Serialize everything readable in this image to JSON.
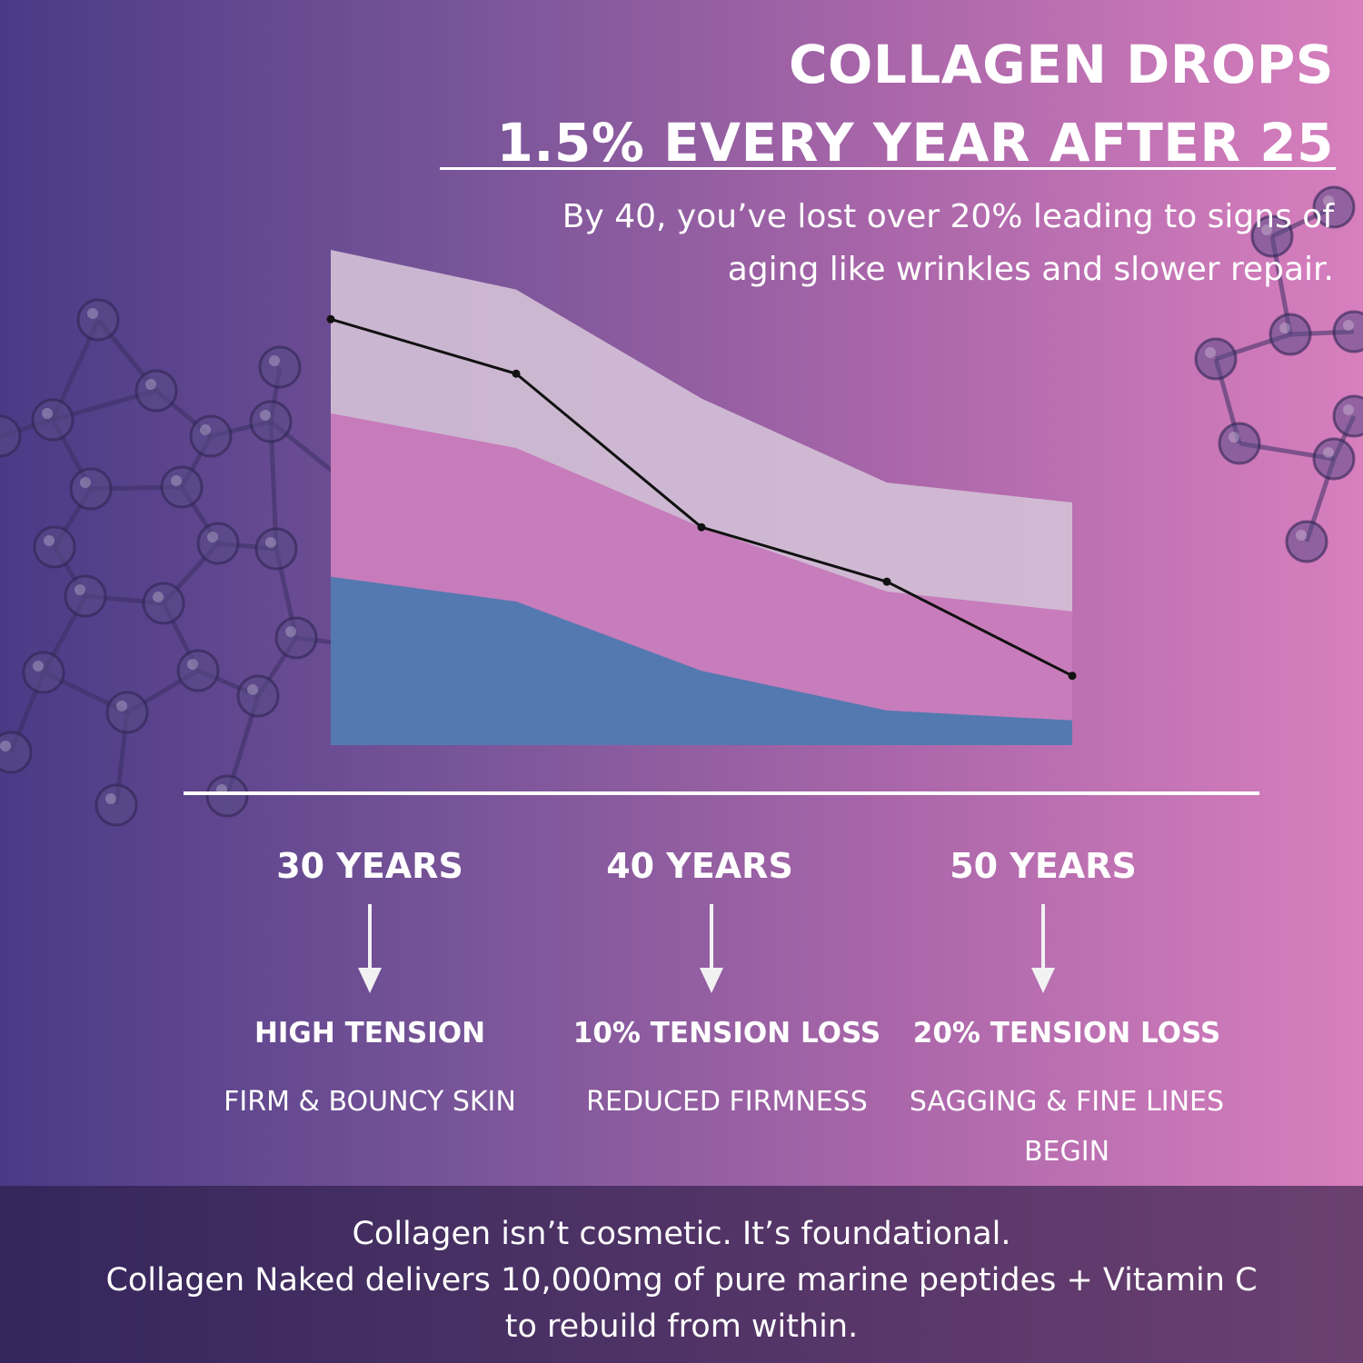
{
  "header": {
    "title_line1": "COLLAGEN DROPS",
    "title_line2": "1.5% EVERY YEAR AFTER 25",
    "subtitle_line1": "By 40, you’ve lost over 20% leading to signs of",
    "subtitle_line2": "aging like wrinkles and slower repair."
  },
  "chart_data": {
    "type": "area",
    "title": "",
    "xlabel": "",
    "ylabel": "",
    "grid": false,
    "legend": "none",
    "x": [
      0,
      1,
      2,
      3,
      4
    ],
    "ylim": [
      0,
      100
    ],
    "series": [
      {
        "kind": "area",
        "values": [
          34,
          29,
          15,
          7,
          5
        ],
        "color": "#4a78b0"
      },
      {
        "kind": "area",
        "values": [
          67,
          60,
          44,
          31,
          27
        ],
        "color": "#c776b8"
      },
      {
        "kind": "area",
        "values": [
          100,
          92,
          70,
          53,
          49
        ],
        "color": "#d2bfd6"
      },
      {
        "kind": "line",
        "values": [
          86,
          75,
          44,
          33,
          14
        ],
        "color": "#111111"
      }
    ]
  },
  "stages": [
    {
      "years": "30 YEARS",
      "status": "HIGH TENSION",
      "effect_line1": "FIRM & BOUNCY SKIN",
      "effect_line2": ""
    },
    {
      "years": "40 YEARS",
      "status": "10% TENSION LOSS",
      "effect_line1": "REDUCED FIRMNESS",
      "effect_line2": ""
    },
    {
      "years": "50 YEARS",
      "status": "20% TENSION LOSS",
      "effect_line1": "SAGGING & FINE LINES",
      "effect_line2": "BEGIN"
    }
  ],
  "footer": {
    "line1": "Collagen isn’t cosmetic. It’s foundational.",
    "line2": "Collagen Naked delivers 10,000mg of pure marine peptides + Vitamin C",
    "line3": "to rebuild from within."
  },
  "icons": {
    "molecule": "molecule-structure-icon",
    "arrow": "arrow-down-icon"
  }
}
